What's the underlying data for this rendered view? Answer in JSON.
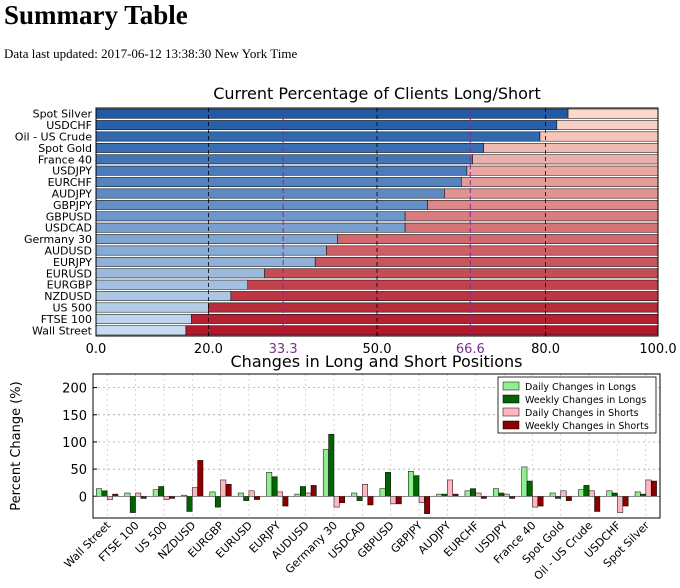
{
  "page": {
    "title": "Summary Table",
    "updated_label": "Data last updated: 2017-06-12 13:38:30 New York Time"
  },
  "colors": {
    "long_dark": "#1f5aa6",
    "long_light": "#c6dbef",
    "short_dark": "#b2182b",
    "short_light": "#fcd9cc",
    "guide_purple": "#7b2f8e",
    "daily_long": "#90ee90",
    "weekly_long": "#006400",
    "daily_short": "#ffb6c1",
    "weekly_short": "#8b0000"
  },
  "chart_data": [
    {
      "type": "bar",
      "orientation": "horizontal-stacked",
      "title": "Current Percentage of Clients Long/Short",
      "xlim": [
        0,
        100
      ],
      "xticks": [
        "0.0",
        "20.0",
        "50.0",
        "80.0",
        "100.0"
      ],
      "guide_ticks": [
        "33.3",
        "66.6"
      ],
      "categories": [
        "Spot Silver",
        "USDCHF",
        "Oil - US Crude",
        "Spot Gold",
        "France 40",
        "USDJPY",
        "EURCHF",
        "AUDJPY",
        "GBPJPY",
        "GBPUSD",
        "USDCAD",
        "Germany 30",
        "AUDUSD",
        "EURJPY",
        "EURUSD",
        "EURGBP",
        "NZDUSD",
        "US 500",
        "FTSE 100",
        "Wall Street"
      ],
      "long_pct": [
        84,
        82,
        79,
        69,
        67,
        66,
        65,
        62,
        59,
        55,
        55,
        43,
        41,
        39,
        30,
        27,
        24,
        20,
        17,
        16
      ]
    },
    {
      "type": "bar",
      "orientation": "vertical-grouped",
      "title": "Changes in Long and Short Positions",
      "ylabel": "Percent Change (%)",
      "ylim": [
        -40,
        225
      ],
      "yticks": [
        "0",
        "50",
        "100",
        "150",
        "200"
      ],
      "legend_position": "top-right",
      "categories": [
        "Wall Street",
        "FTSE 100",
        "US 500",
        "NZDUSD",
        "EURGBP",
        "EURUSD",
        "EURJPY",
        "AUDUSD",
        "Germany 30",
        "USDCAD",
        "GBPUSD",
        "GBPJPY",
        "AUDJPY",
        "EURCHF",
        "USDJPY",
        "France 40",
        "Spot Gold",
        "Oil - US Crude",
        "USDCHF",
        "Spot Silver"
      ],
      "series": [
        {
          "name": "Daily Changes in Longs",
          "values": [
            14,
            6,
            12,
            2,
            8,
            6,
            44,
            4,
            86,
            6,
            14,
            46,
            4,
            10,
            14,
            54,
            6,
            12,
            10,
            8
          ]
        },
        {
          "name": "Weekly Changes in Longs",
          "values": [
            10,
            -30,
            18,
            -28,
            -20,
            -8,
            36,
            18,
            114,
            -8,
            44,
            38,
            4,
            14,
            6,
            28,
            -4,
            20,
            6,
            4
          ]
        },
        {
          "name": "Daily Changes in Shorts",
          "values": [
            -6,
            6,
            -6,
            16,
            30,
            10,
            8,
            6,
            -20,
            22,
            -14,
            -12,
            30,
            6,
            4,
            -20,
            10,
            10,
            -30,
            30
          ]
        },
        {
          "name": "Weekly Changes in Shorts",
          "values": [
            4,
            -4,
            -4,
            66,
            22,
            -6,
            -18,
            20,
            -12,
            -16,
            -14,
            -32,
            4,
            -4,
            -4,
            -18,
            -8,
            -28,
            -18,
            28
          ]
        }
      ]
    }
  ]
}
